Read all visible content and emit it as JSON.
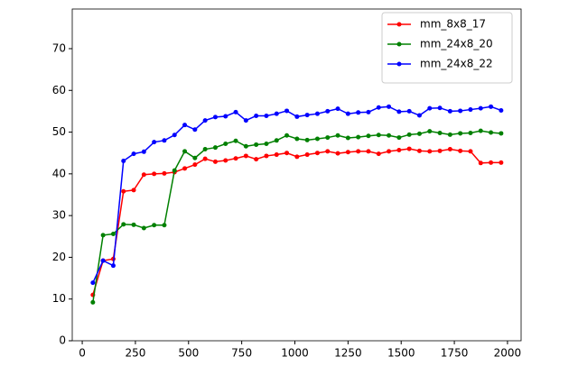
{
  "chart_data": {
    "type": "line",
    "x": [
      50,
      98,
      146,
      194,
      242,
      290,
      338,
      386,
      434,
      482,
      530,
      578,
      626,
      674,
      722,
      770,
      818,
      866,
      914,
      962,
      1010,
      1058,
      1106,
      1154,
      1202,
      1250,
      1298,
      1346,
      1394,
      1442,
      1490,
      1538,
      1586,
      1634,
      1682,
      1730,
      1778,
      1826,
      1874,
      1922,
      1970
    ],
    "series": [
      {
        "name": "mm_8x8_17",
        "color": "#ff0000",
        "values": [
          11,
          19.2,
          19.6,
          35.8,
          36.1,
          39.8,
          40,
          40.1,
          40.4,
          41.3,
          42.2,
          43.6,
          42.9,
          43.2,
          43.7,
          44.3,
          43.5,
          44.3,
          44.6,
          45,
          44.1,
          44.6,
          45,
          45.4,
          44.9,
          45.2,
          45.4,
          45.4,
          44.8,
          45.4,
          45.7,
          46,
          45.5,
          45.4,
          45.5,
          45.9,
          45.5,
          45.4,
          42.6,
          42.7,
          42.7
        ]
      },
      {
        "name": "mm_24x8_20",
        "color": "#008000",
        "values": [
          9.2,
          25.3,
          25.6,
          27.9,
          27.8,
          27,
          27.7,
          27.7,
          40.8,
          45.4,
          43.8,
          45.9,
          46.3,
          47.2,
          47.9,
          46.6,
          47,
          47.2,
          48,
          49.2,
          48.4,
          48.1,
          48.4,
          48.7,
          49.2,
          48.6,
          48.8,
          49.1,
          49.3,
          49.2,
          48.7,
          49.4,
          49.6,
          50.2,
          49.8,
          49.4,
          49.7,
          49.8,
          50.3,
          49.9,
          49.7
        ]
      },
      {
        "name": "mm_24x8_22",
        "color": "#0000ff",
        "values": [
          13.9,
          19.2,
          18,
          43.1,
          44.8,
          45.3,
          47.6,
          48,
          49.3,
          51.7,
          50.6,
          52.8,
          53.6,
          53.8,
          54.8,
          52.8,
          53.9,
          53.9,
          54.4,
          55.1,
          53.7,
          54.1,
          54.4,
          55,
          55.6,
          54.4,
          54.7,
          54.8,
          55.9,
          56.1,
          54.9,
          55,
          54,
          55.7,
          55.8,
          55,
          55.1,
          55.4,
          55.7,
          56.1,
          55.2
        ]
      }
    ],
    "xlim": [
      -47,
      2064
    ],
    "ylim": [
      0,
      79.5
    ],
    "xticks": [
      0,
      250,
      500,
      750,
      1000,
      1250,
      1500,
      1750,
      2000
    ],
    "yticks": [
      0,
      10,
      20,
      30,
      40,
      50,
      60,
      70
    ],
    "grid": false,
    "legend": "upper right"
  }
}
